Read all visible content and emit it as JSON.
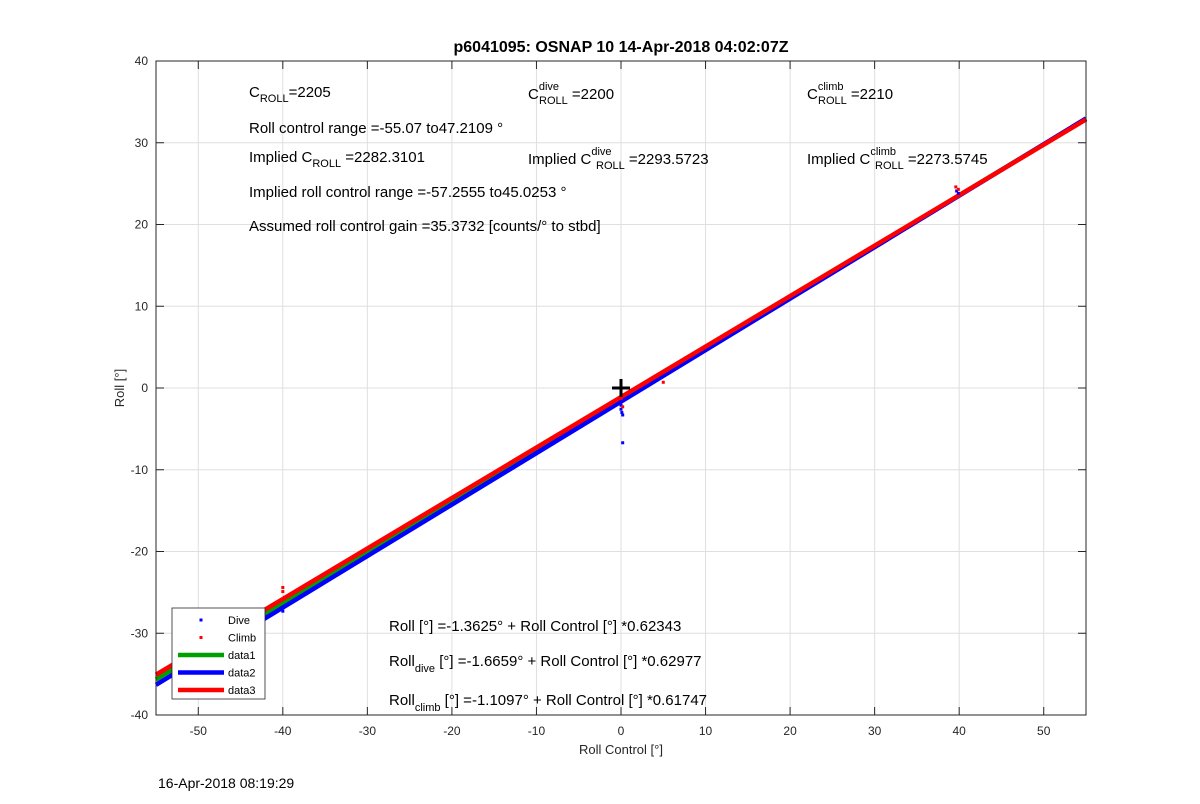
{
  "figure": {
    "title": "p6041095: OSNAP 10 14-Apr-2018 04:02:07Z",
    "timestamp": "16-Apr-2018 08:19:29"
  },
  "annotations": {
    "c_roll": {
      "base": "C",
      "sub": "ROLL",
      "text": "=2205"
    },
    "c_roll_dive": {
      "base": "C",
      "sup": "dive",
      "sub": "ROLL",
      "text": " =2200"
    },
    "c_roll_climb": {
      "base": "C",
      "sup": "climb",
      "sub": "ROLL",
      "text": " =2210"
    },
    "roll_control_range": "Roll control range =-55.07 to47.2109 °",
    "implied_c_roll": {
      "prefix": "Implied C",
      "sub": "ROLL",
      "text": " =2282.3101"
    },
    "implied_c_roll_dive": {
      "prefix": "Implied C",
      "sup": "dive",
      "sub": "ROLL",
      "text": " =2293.5723"
    },
    "implied_c_roll_climb": {
      "prefix": "Implied C",
      "sup": "climb",
      "sub": "ROLL",
      "text": " =2273.5745"
    },
    "implied_range": "Implied roll control range =-57.2555 to45.0253 °",
    "gain": "Assumed roll control gain =35.3732 [counts/° to stbd]",
    "fit_all": {
      "prefix": "Roll",
      "sub": "",
      "text": " [°] =-1.3625° + Roll Control [°] *0.62343"
    },
    "fit_dive": {
      "prefix": "Roll",
      "sub": "dive",
      "text": " [°] =-1.6659° + Roll Control [°] *0.62977"
    },
    "fit_climb": {
      "prefix": "Roll",
      "sub": "climb",
      "text": " [°] =-1.1097° + Roll Control [°] *0.61747"
    }
  },
  "chart_data": {
    "type": "scatter",
    "xlabel": "Roll Control [°]",
    "ylabel": "Roll [°]",
    "xlim": [
      -55,
      55
    ],
    "ylim": [
      -40,
      40
    ],
    "xticks": [
      -50,
      -40,
      -30,
      -20,
      -10,
      0,
      10,
      20,
      30,
      40,
      50
    ],
    "yticks": [
      -40,
      -30,
      -20,
      -10,
      0,
      10,
      20,
      30,
      40
    ],
    "grid": true,
    "legend_placement": "bottom-left",
    "marker": {
      "x": 0,
      "y": 0,
      "symbol": "+"
    },
    "series": [
      {
        "name": "Dive",
        "kind": "points",
        "color": "#0000ff",
        "points": [
          [
            -40,
            -27.3
          ],
          [
            0,
            -1.6
          ],
          [
            0,
            -2.1
          ],
          [
            0,
            -2.6
          ],
          [
            0.1,
            -3.0
          ],
          [
            0.2,
            -3.3
          ],
          [
            0.2,
            -6.7
          ],
          [
            39.7,
            24.1
          ],
          [
            39.9,
            23.8
          ]
        ]
      },
      {
        "name": "Climb",
        "kind": "points",
        "color": "#ff0000",
        "points": [
          [
            -40,
            -24.4
          ],
          [
            -40,
            -24.9
          ],
          [
            -39.8,
            -25.6
          ],
          [
            0,
            -0.7
          ],
          [
            0,
            -1.3
          ],
          [
            0.2,
            -2.3
          ],
          [
            5,
            0.7
          ],
          [
            39.6,
            24.6
          ],
          [
            39.9,
            24.3
          ]
        ]
      },
      {
        "name": "data1",
        "kind": "line",
        "color": "#00a000",
        "intercept": -1.3625,
        "slope": 0.62343
      },
      {
        "name": "data2",
        "kind": "line",
        "color": "#0000ff",
        "intercept": -1.6659,
        "slope": 0.62977
      },
      {
        "name": "data3",
        "kind": "line",
        "color": "#ff0000",
        "intercept": -1.1097,
        "slope": 0.61747
      }
    ]
  }
}
